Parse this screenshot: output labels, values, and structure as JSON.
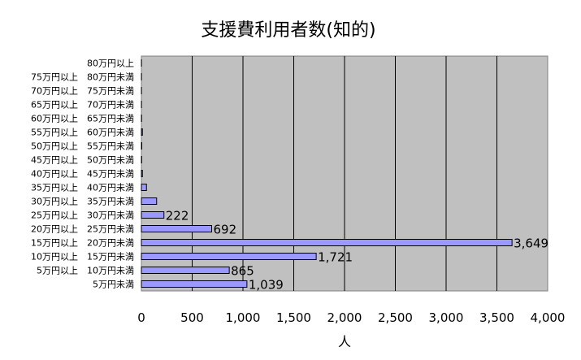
{
  "chart_data": {
    "type": "bar",
    "orientation": "horizontal",
    "title": "支援費利用者数(知的)",
    "xlabel": "人",
    "ylabel": "",
    "xlim": [
      0,
      4000
    ],
    "xticks": [
      "0",
      "500",
      "1,000",
      "1,500",
      "2,000",
      "2,500",
      "3,000",
      "3,500",
      "4,000"
    ],
    "grid": true,
    "plot_background": "#c0c0c0",
    "bar_color": "#9999ff",
    "categories": [
      "5万円未満",
      "5万円以上　10万円未満",
      "10万円以上　15万円未満",
      "15万円以上　20万円未満",
      "20万円以上　25万円未満",
      "25万円以上　30万円未満",
      "30万円以上　35万円未満",
      "35万円以上　40万円未満",
      "40万円以上　45万円未満",
      "45万円以上　50万円未満",
      "50万円以上　55万円未満",
      "55万円以上　60万円未満",
      "60万円以上　65万円未満",
      "65万円以上　70万円未満",
      "70万円以上　75万円未満",
      "75万円以上　80万円未満",
      "80万円以上"
    ],
    "values": [
      1039,
      865,
      1721,
      3649,
      692,
      222,
      150,
      50,
      10,
      3,
      4,
      10,
      2,
      1,
      1,
      1,
      1
    ],
    "data_labels": [
      "1,039",
      "865",
      "1,721",
      "3,649",
      "692",
      "222",
      "",
      "",
      "",
      "",
      "",
      "",
      "",
      "",
      "",
      "",
      ""
    ]
  }
}
